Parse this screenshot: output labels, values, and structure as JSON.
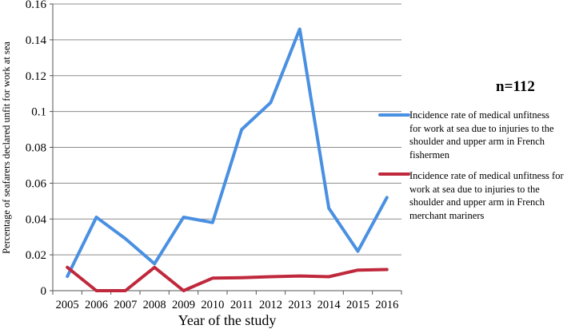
{
  "chart_data": {
    "type": "line",
    "x": [
      "2005",
      "2006",
      "2007",
      "2008",
      "2009",
      "2010",
      "2011",
      "2012",
      "2013",
      "2014",
      "2015",
      "2016"
    ],
    "xlabel": "Year of the study",
    "ylabel": "Percentage of seafarers declared unfit for work at sea",
    "ylim": [
      0,
      0.16
    ],
    "yticks": [
      "0",
      "0.02",
      "0.04",
      "0.06",
      "0.08",
      "0.1",
      "0.12",
      "0.14",
      "0.16"
    ],
    "grid": true,
    "legend_position": "right",
    "annotation": "n=112",
    "series": [
      {
        "name": "Incidence rate of medical unfitness for work at sea due to injuries to the shoulder and upper arm in French fishermen",
        "color": "#4a90e2",
        "values": [
          0.008,
          0.041,
          0.029,
          0.015,
          0.041,
          0.038,
          0.09,
          0.105,
          0.146,
          0.046,
          0.022,
          0.052
        ]
      },
      {
        "name": "Incidence rate of medical unfitness for work at sea due to injuries to the shoulder and upper arm in French merchant mariners",
        "color": "#c0283c",
        "values": [
          0.013,
          0.0,
          0.0,
          0.013,
          0.0,
          0.007,
          0.0072,
          0.0078,
          0.0082,
          0.0078,
          0.0115,
          0.0118
        ]
      }
    ]
  }
}
